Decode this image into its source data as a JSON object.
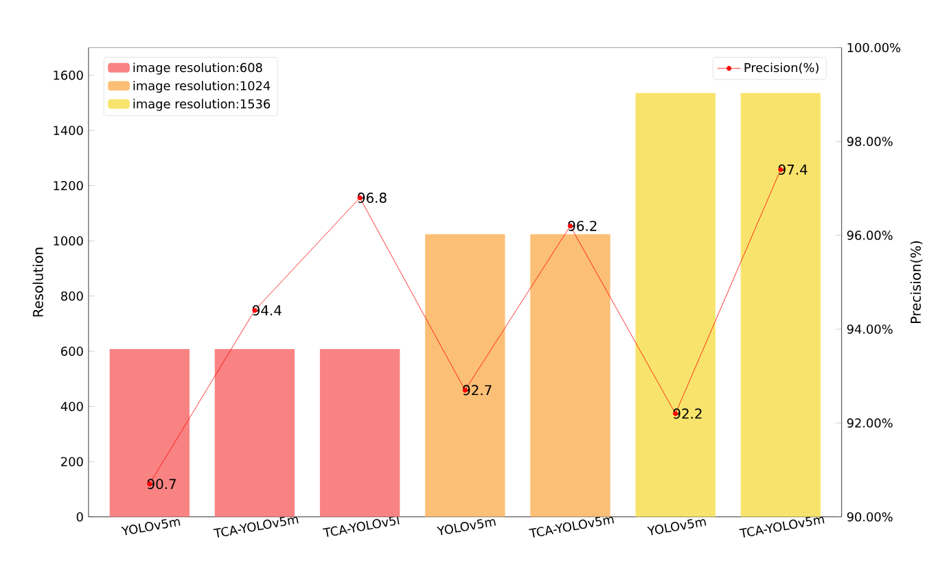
{
  "chart_data": {
    "type": "bar",
    "categories": [
      "YOLOv5m",
      "TCA-YOLOv5m",
      "TCA-YOLOv5l",
      "YOLOv5m",
      "TCA-YOLOv5m",
      "YOLOv5m",
      "TCA-YOLOv5m"
    ],
    "series": [
      {
        "name": "image resolution:608",
        "color": "#f98383",
        "values": [
          608,
          608,
          608,
          null,
          null,
          null,
          null
        ]
      },
      {
        "name": "image resolution:1024",
        "color": "#fcbf76",
        "values": [
          null,
          null,
          null,
          1024,
          1024,
          null,
          null
        ]
      },
      {
        "name": "image resolution:1536",
        "color": "#f8e46c",
        "values": [
          null,
          null,
          null,
          null,
          null,
          1536,
          1536
        ]
      },
      {
        "name": "Precision(%)",
        "type": "line",
        "axis": "y2",
        "color": "#ff0000",
        "marker": "circle",
        "line_style": "solid",
        "values": [
          90.7,
          94.4,
          96.8,
          92.7,
          96.2,
          92.2,
          97.4
        ],
        "value_labels": [
          "90.7",
          "94.4",
          "96.8",
          "92.7",
          "96.2",
          "92.2",
          "97.4"
        ]
      }
    ],
    "ylabel": "Resolution",
    "y2label": "Precision(%)",
    "ylim": [
      0,
      1700
    ],
    "yticks": [
      0,
      200,
      400,
      600,
      800,
      1000,
      1200,
      1400,
      1600
    ],
    "y2lim": [
      90,
      100
    ],
    "y2ticks": [
      {
        "value": 90,
        "label": "90.00%"
      },
      {
        "value": 92,
        "label": "92.00%"
      },
      {
        "value": 94,
        "label": "94.00%"
      },
      {
        "value": 96,
        "label": "96.00%"
      },
      {
        "value": 98,
        "label": "98.00%"
      },
      {
        "value": 100,
        "label": "100.00%"
      }
    ],
    "legend": "top left"
  }
}
